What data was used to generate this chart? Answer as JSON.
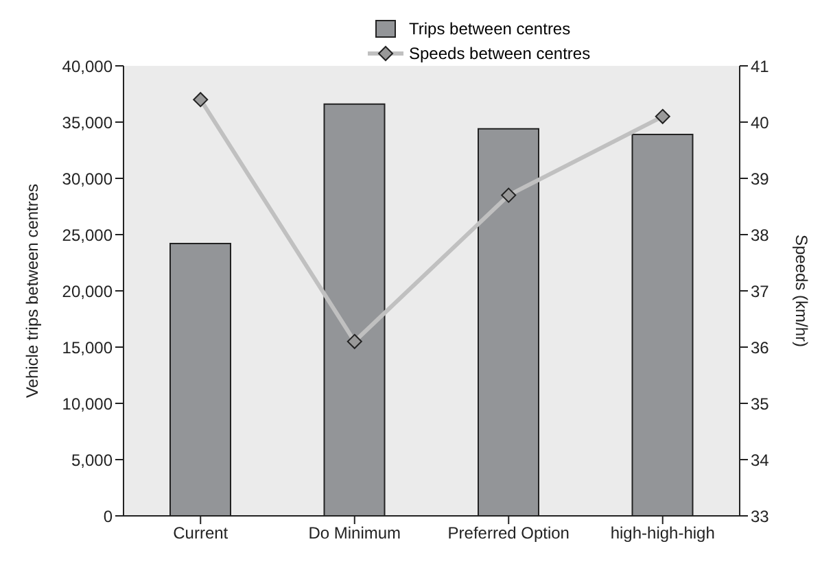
{
  "chart_data": {
    "type": "bar",
    "categories": [
      "Current",
      "Do Minimum",
      "Preferred Option",
      "high-high-high"
    ],
    "ylabel": "Vehicle trips between centres",
    "y2label": "Speeds (km/hr)",
    "series": [
      {
        "name": "Trips between centres",
        "color": "#939598",
        "values": [
          24200,
          36600,
          34400,
          33900
        ]
      },
      {
        "name": "Speeds between centres",
        "type": "line",
        "axis": "y2",
        "color": "#c0c0c0",
        "marker": "diamond",
        "line_style": "solid",
        "values": [
          40.4,
          36.1,
          38.7,
          40.1
        ]
      }
    ],
    "ylim": [
      0,
      40000
    ],
    "yticks": [
      0,
      {
        "value": 5000,
        "label": "5,000"
      },
      {
        "value": 10000,
        "label": "10,000"
      },
      {
        "value": 15000,
        "label": "15,000"
      },
      {
        "value": 20000,
        "label": "20,000"
      },
      {
        "value": 25000,
        "label": "25,000"
      },
      {
        "value": 30000,
        "label": "30,000"
      },
      {
        "value": 35000,
        "label": "35,000"
      },
      {
        "value": 40000,
        "label": "40,000"
      }
    ],
    "y2lim": [
      33,
      41
    ],
    "y2ticks": [
      33,
      34,
      35,
      36,
      37,
      38,
      39,
      40,
      41
    ],
    "grid": false,
    "legend": "top right"
  }
}
